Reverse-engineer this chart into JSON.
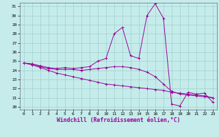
{
  "xlabel": "Windchill (Refroidissement éolien,°C)",
  "background_color": "#c5ecea",
  "grid_color": "#9ecfcc",
  "line_color": "#990099",
  "x": [
    0,
    1,
    2,
    3,
    4,
    5,
    6,
    7,
    8,
    9,
    10,
    11,
    12,
    13,
    14,
    15,
    16,
    17,
    18,
    19,
    20,
    21,
    22,
    23
  ],
  "line1": [
    24.8,
    24.7,
    24.5,
    24.3,
    24.2,
    24.3,
    24.2,
    24.3,
    24.4,
    25.0,
    25.3,
    28.0,
    28.7,
    25.6,
    25.3,
    30.0,
    31.3,
    29.7,
    20.3,
    20.1,
    21.6,
    21.4,
    21.5,
    20.5
  ],
  "line2": [
    24.8,
    24.7,
    24.4,
    24.2,
    24.1,
    24.1,
    24.1,
    24.0,
    24.1,
    24.2,
    24.3,
    24.4,
    24.4,
    24.3,
    24.1,
    23.8,
    23.3,
    22.5,
    21.7,
    21.4,
    21.3,
    21.2,
    21.1,
    21.0
  ],
  "line3": [
    24.8,
    24.6,
    24.3,
    24.0,
    23.7,
    23.5,
    23.3,
    23.1,
    22.9,
    22.7,
    22.5,
    22.4,
    22.3,
    22.2,
    22.1,
    22.0,
    21.9,
    21.8,
    21.6,
    21.5,
    21.4,
    21.3,
    21.2,
    21.0
  ],
  "ylim": [
    20,
    31
  ],
  "xlim": [
    0,
    23
  ],
  "yticks": [
    20,
    21,
    22,
    23,
    24,
    25,
    26,
    27,
    28,
    29,
    30,
    31
  ],
  "xticks": [
    0,
    1,
    2,
    3,
    4,
    5,
    6,
    7,
    8,
    9,
    10,
    11,
    12,
    13,
    14,
    15,
    16,
    17,
    18,
    19,
    20,
    21,
    22,
    23
  ],
  "tick_fontsize": 4.5,
  "xlabel_fontsize": 5.8
}
